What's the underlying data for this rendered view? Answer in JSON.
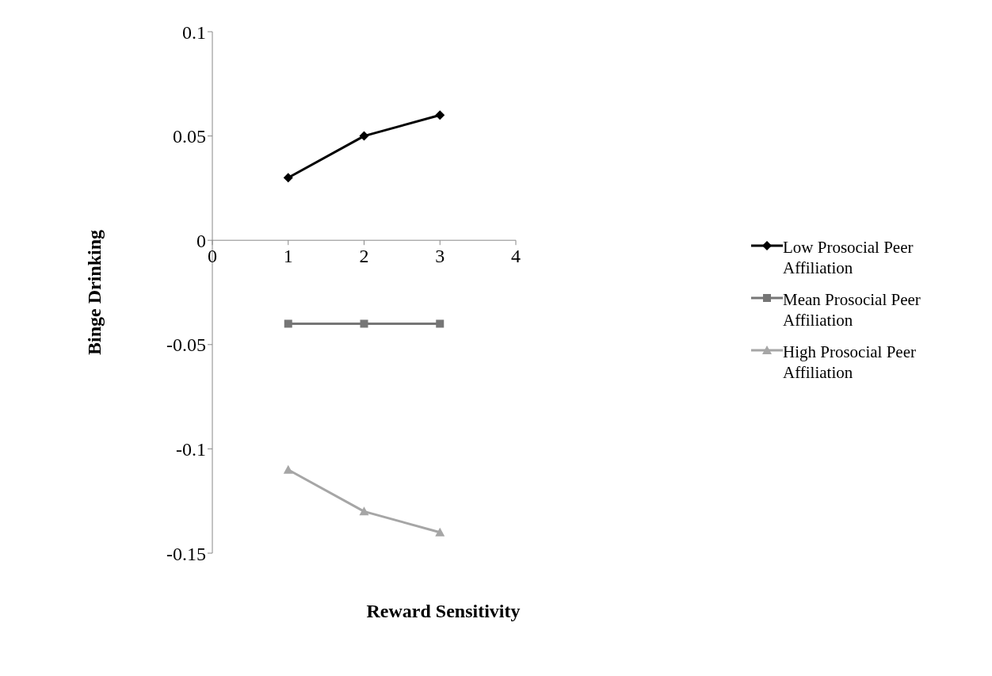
{
  "chart_data": {
    "type": "line",
    "xlabel": "Reward Sensitivity",
    "ylabel": "Binge Drinking",
    "x": [
      1,
      2,
      3
    ],
    "xlim": [
      0,
      4
    ],
    "xticks": [
      0,
      1,
      2,
      3,
      4
    ],
    "ylim": [
      -0.15,
      0.1
    ],
    "yticks": [
      -0.15,
      -0.1,
      -0.05,
      0,
      0.05,
      0.1
    ],
    "grid": false,
    "legend": "right",
    "series": [
      {
        "name": "Low Prosocial Peer Affiliation",
        "color": "#000000",
        "marker": "diamond",
        "values": [
          0.03,
          0.05,
          0.06
        ]
      },
      {
        "name": "Mean Prosocial Peer Affiliation",
        "color": "#767676",
        "marker": "square",
        "values": [
          -0.04,
          -0.04,
          -0.04
        ]
      },
      {
        "name": "High Prosocial Peer Affiliation",
        "color": "#a6a6a6",
        "marker": "triangle",
        "values": [
          -0.11,
          -0.13,
          -0.14
        ]
      }
    ]
  }
}
